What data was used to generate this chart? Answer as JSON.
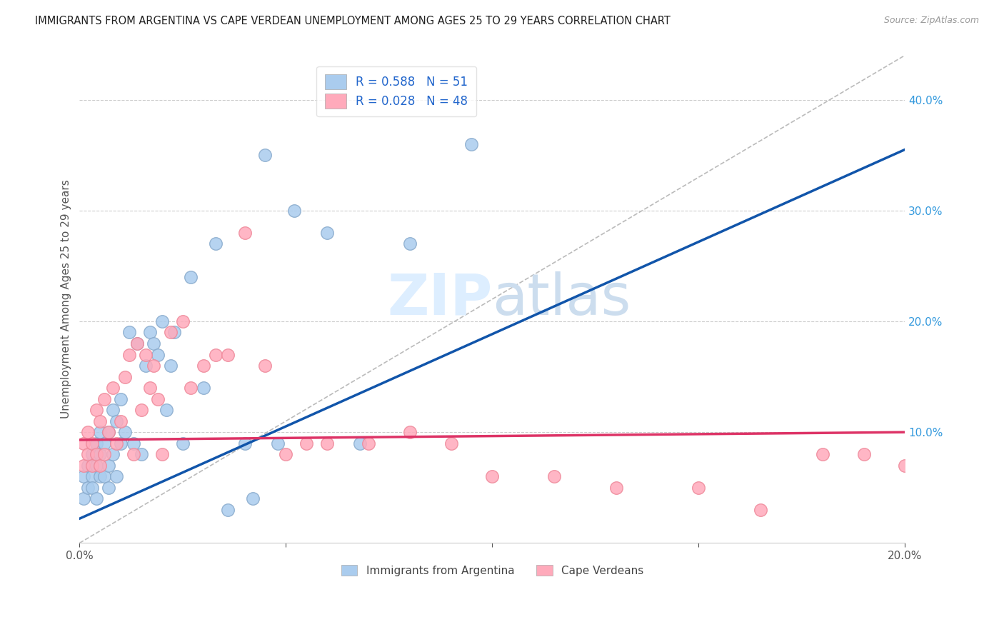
{
  "title": "IMMIGRANTS FROM ARGENTINA VS CAPE VERDEAN UNEMPLOYMENT AMONG AGES 25 TO 29 YEARS CORRELATION CHART",
  "source": "Source: ZipAtlas.com",
  "ylabel": "Unemployment Among Ages 25 to 29 years",
  "xlim": [
    0,
    0.2
  ],
  "ylim": [
    0,
    0.44
  ],
  "xticks": [
    0.0,
    0.05,
    0.1,
    0.15,
    0.2
  ],
  "yticks": [
    0.0,
    0.1,
    0.2,
    0.3,
    0.4
  ],
  "blue_R": 0.588,
  "blue_N": 51,
  "pink_R": 0.028,
  "pink_N": 48,
  "blue_color": "#aaccee",
  "pink_color": "#ffaabb",
  "blue_edge_color": "#88aacc",
  "pink_edge_color": "#ee8899",
  "blue_line_color": "#1155aa",
  "pink_line_color": "#dd3366",
  "diagonal_color": "#bbbbbb",
  "background_color": "#ffffff",
  "grid_color": "#cccccc",
  "watermark_color": "#ddeeff",
  "legend_label_blue": "Immigrants from Argentina",
  "legend_label_pink": "Cape Verdeans",
  "blue_scatter_x": [
    0.001,
    0.001,
    0.002,
    0.002,
    0.003,
    0.003,
    0.003,
    0.004,
    0.004,
    0.004,
    0.005,
    0.005,
    0.005,
    0.006,
    0.006,
    0.007,
    0.007,
    0.007,
    0.008,
    0.008,
    0.009,
    0.009,
    0.01,
    0.01,
    0.011,
    0.012,
    0.013,
    0.014,
    0.015,
    0.016,
    0.017,
    0.018,
    0.019,
    0.02,
    0.021,
    0.022,
    0.023,
    0.025,
    0.027,
    0.03,
    0.033,
    0.036,
    0.04,
    0.042,
    0.045,
    0.048,
    0.052,
    0.06,
    0.068,
    0.08,
    0.095
  ],
  "blue_scatter_y": [
    0.04,
    0.06,
    0.05,
    0.07,
    0.06,
    0.08,
    0.05,
    0.07,
    0.04,
    0.09,
    0.06,
    0.08,
    0.1,
    0.06,
    0.09,
    0.07,
    0.1,
    0.05,
    0.08,
    0.12,
    0.06,
    0.11,
    0.09,
    0.13,
    0.1,
    0.19,
    0.09,
    0.18,
    0.08,
    0.16,
    0.19,
    0.18,
    0.17,
    0.2,
    0.12,
    0.16,
    0.19,
    0.09,
    0.24,
    0.14,
    0.27,
    0.03,
    0.09,
    0.04,
    0.35,
    0.09,
    0.3,
    0.28,
    0.09,
    0.27,
    0.36
  ],
  "pink_scatter_x": [
    0.001,
    0.001,
    0.002,
    0.002,
    0.003,
    0.003,
    0.004,
    0.004,
    0.005,
    0.005,
    0.006,
    0.006,
    0.007,
    0.008,
    0.009,
    0.01,
    0.011,
    0.012,
    0.013,
    0.014,
    0.015,
    0.016,
    0.017,
    0.018,
    0.019,
    0.02,
    0.022,
    0.025,
    0.027,
    0.03,
    0.033,
    0.036,
    0.04,
    0.045,
    0.05,
    0.055,
    0.06,
    0.07,
    0.08,
    0.09,
    0.1,
    0.115,
    0.13,
    0.15,
    0.165,
    0.18,
    0.19,
    0.2
  ],
  "pink_scatter_y": [
    0.07,
    0.09,
    0.08,
    0.1,
    0.07,
    0.09,
    0.08,
    0.12,
    0.07,
    0.11,
    0.08,
    0.13,
    0.1,
    0.14,
    0.09,
    0.11,
    0.15,
    0.17,
    0.08,
    0.18,
    0.12,
    0.17,
    0.14,
    0.16,
    0.13,
    0.08,
    0.19,
    0.2,
    0.14,
    0.16,
    0.17,
    0.17,
    0.28,
    0.16,
    0.08,
    0.09,
    0.09,
    0.09,
    0.1,
    0.09,
    0.06,
    0.06,
    0.05,
    0.05,
    0.03,
    0.08,
    0.08,
    0.07
  ],
  "blue_line_x0": 0.0,
  "blue_line_y0": 0.022,
  "blue_line_x1": 0.2,
  "blue_line_y1": 0.355,
  "pink_line_x0": 0.0,
  "pink_line_y0": 0.093,
  "pink_line_x1": 0.2,
  "pink_line_y1": 0.1
}
